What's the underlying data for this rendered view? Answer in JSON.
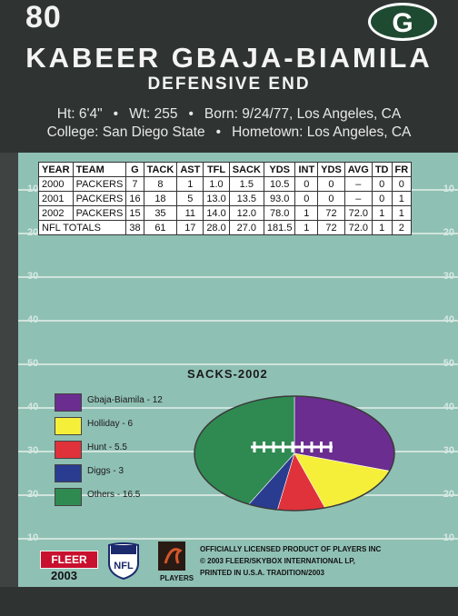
{
  "card": {
    "number": "80",
    "player_name": "KABEER GBAJA-BIAMILA",
    "position": "DEFENSIVE END",
    "info_line1": [
      "Ht: 6'4\"",
      "Wt: 255",
      "Born: 9/24/77, Los Angeles, CA"
    ],
    "info_line2": [
      "College: San Diego State",
      "Hometown: Los Angeles, CA"
    ],
    "bullet": "•",
    "team_logo_letter": "G"
  },
  "stats": {
    "headers": [
      "YEAR",
      "TEAM",
      "G",
      "TACK",
      "AST",
      "TFL",
      "SACK",
      "YDS",
      "INT",
      "YDS",
      "AVG",
      "TD",
      "FR"
    ],
    "rows": [
      [
        "2000",
        "PACKERS",
        "7",
        "8",
        "1",
        "1.0",
        "1.5",
        "10.5",
        "0",
        "0",
        "–",
        "0",
        "0"
      ],
      [
        "2001",
        "PACKERS",
        "16",
        "18",
        "5",
        "13.0",
        "13.5",
        "93.0",
        "0",
        "0",
        "–",
        "0",
        "1"
      ],
      [
        "2002",
        "PACKERS",
        "15",
        "35",
        "11",
        "14.0",
        "12.0",
        "78.0",
        "1",
        "72",
        "72.0",
        "1",
        "1"
      ]
    ],
    "totals_label": "NFL TOTALS",
    "totals": [
      "38",
      "61",
      "17",
      "28.0",
      "27.0",
      "181.5",
      "1",
      "72",
      "72.0",
      "1",
      "2"
    ]
  },
  "yard_markers": [
    "10",
    "20",
    "30",
    "40",
    "50",
    "40",
    "30",
    "20",
    "10"
  ],
  "chart_data": {
    "type": "pie",
    "title": "SACKS-2002",
    "categories": [
      "Gbaja-Biamila",
      "Holliday",
      "Hunt",
      "Diggs",
      "Others"
    ],
    "values": [
      12,
      6,
      5.5,
      3,
      16.5
    ],
    "colors": [
      "#6b2d8f",
      "#f5ef3a",
      "#e0323a",
      "#2a3c8f",
      "#2f8a52"
    ],
    "legend_labels": [
      "Gbaja-Biamila - 12",
      "Holliday - 6",
      "Hunt - 5.5",
      "Diggs - 3",
      "Others - 16.5"
    ]
  },
  "footer": {
    "brand": "FLEER",
    "year": "2003",
    "nfl": "NFL",
    "players_label": "PLAYERS",
    "legal_lines": [
      "OFFICIALLY LICENSED PRODUCT OF PLAYERS INC",
      "© 2003 FLEER/SKYBOX INTERNATIONAL LP,",
      "PRINTED IN U.S.A. TRADITION/2003"
    ]
  }
}
